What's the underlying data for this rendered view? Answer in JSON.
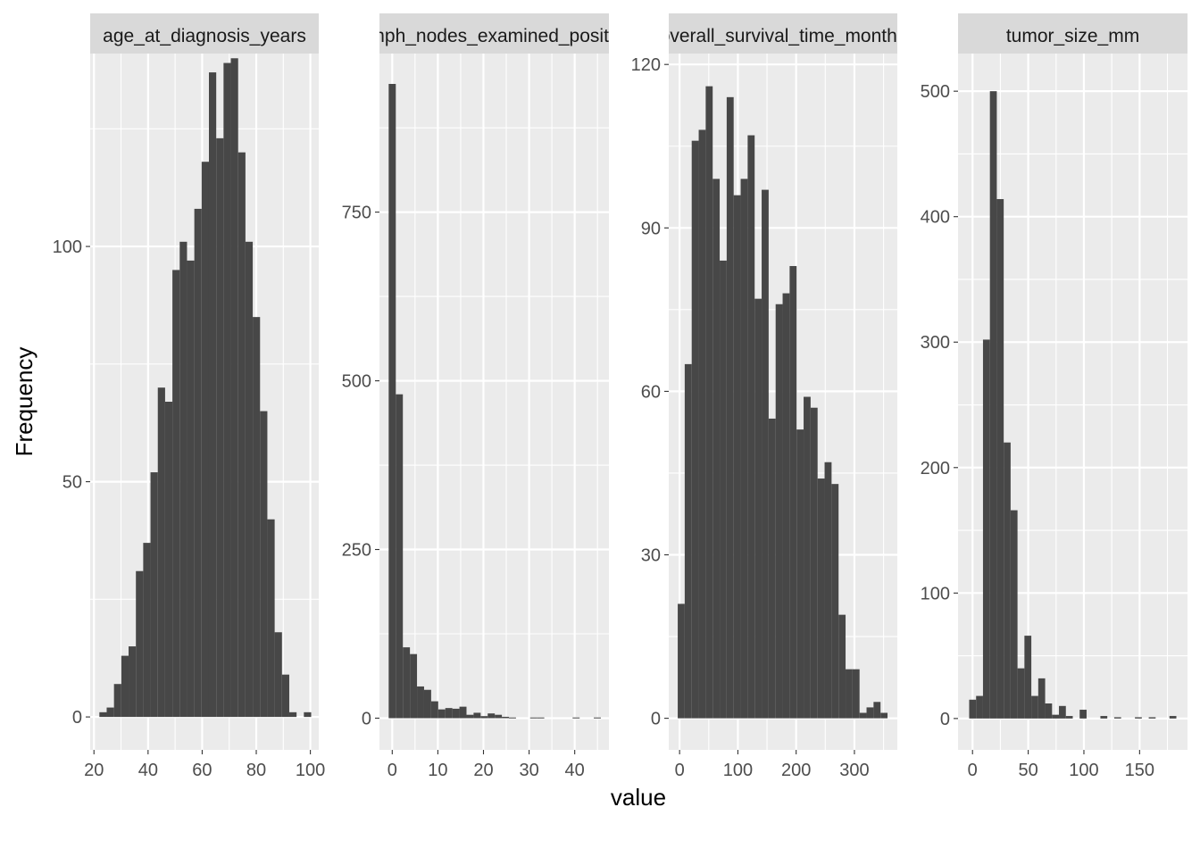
{
  "chart_data": {
    "type": "histogram-facets",
    "xlabel": "value",
    "ylabel": "Frequency",
    "panels": [
      {
        "strip": "age_at_diagnosis_years",
        "xlim": [
          18.6,
          103.1
        ],
        "ylim": [
          -7,
          141
        ],
        "xticks": [
          20,
          40,
          60,
          80,
          100
        ],
        "yticks": [
          0,
          50,
          100
        ],
        "bins": [
          {
            "x0": 22.0,
            "x1": 24.7,
            "count": 1
          },
          {
            "x0": 24.7,
            "x1": 27.4,
            "count": 2
          },
          {
            "x0": 27.4,
            "x1": 30.1,
            "count": 7
          },
          {
            "x0": 30.1,
            "x1": 32.8,
            "count": 13
          },
          {
            "x0": 32.8,
            "x1": 35.5,
            "count": 15
          },
          {
            "x0": 35.5,
            "x1": 38.2,
            "count": 31
          },
          {
            "x0": 38.2,
            "x1": 40.9,
            "count": 37
          },
          {
            "x0": 40.9,
            "x1": 43.6,
            "count": 52
          },
          {
            "x0": 43.6,
            "x1": 46.3,
            "count": 70
          },
          {
            "x0": 46.3,
            "x1": 49.0,
            "count": 67
          },
          {
            "x0": 49.0,
            "x1": 51.7,
            "count": 95
          },
          {
            "x0": 51.7,
            "x1": 54.4,
            "count": 101
          },
          {
            "x0": 54.4,
            "x1": 57.1,
            "count": 97
          },
          {
            "x0": 57.1,
            "x1": 59.8,
            "count": 108
          },
          {
            "x0": 59.8,
            "x1": 62.5,
            "count": 118
          },
          {
            "x0": 62.5,
            "x1": 65.2,
            "count": 137
          },
          {
            "x0": 65.2,
            "x1": 67.9,
            "count": 123
          },
          {
            "x0": 67.9,
            "x1": 70.6,
            "count": 139
          },
          {
            "x0": 70.6,
            "x1": 73.3,
            "count": 140
          },
          {
            "x0": 73.3,
            "x1": 76.0,
            "count": 120
          },
          {
            "x0": 76.0,
            "x1": 78.7,
            "count": 101
          },
          {
            "x0": 78.7,
            "x1": 81.4,
            "count": 85
          },
          {
            "x0": 81.4,
            "x1": 84.1,
            "count": 65
          },
          {
            "x0": 84.1,
            "x1": 86.8,
            "count": 42
          },
          {
            "x0": 86.8,
            "x1": 89.5,
            "count": 18
          },
          {
            "x0": 89.5,
            "x1": 92.2,
            "count": 9
          },
          {
            "x0": 92.2,
            "x1": 94.9,
            "count": 1
          },
          {
            "x0": 94.9,
            "x1": 97.6,
            "count": 0
          },
          {
            "x0": 97.6,
            "x1": 100.3,
            "count": 1
          }
        ]
      },
      {
        "strip": "lymph_nodes_examined_positive",
        "xlim": [
          -2.8,
          47.5
        ],
        "ylim": [
          -47,
          985
        ],
        "xticks": [
          0,
          10,
          20,
          30,
          40
        ],
        "yticks": [
          0,
          250,
          500,
          750
        ],
        "bins": [
          {
            "x0": -0.78,
            "x1": 0.78,
            "count": 940
          },
          {
            "x0": 0.78,
            "x1": 2.33,
            "count": 480
          },
          {
            "x0": 2.33,
            "x1": 3.88,
            "count": 105
          },
          {
            "x0": 3.88,
            "x1": 5.43,
            "count": 95
          },
          {
            "x0": 5.43,
            "x1": 6.98,
            "count": 47
          },
          {
            "x0": 6.98,
            "x1": 8.53,
            "count": 42
          },
          {
            "x0": 8.53,
            "x1": 10.08,
            "count": 25
          },
          {
            "x0": 10.08,
            "x1": 11.63,
            "count": 13
          },
          {
            "x0": 11.63,
            "x1": 13.18,
            "count": 15
          },
          {
            "x0": 13.18,
            "x1": 14.73,
            "count": 14
          },
          {
            "x0": 14.73,
            "x1": 16.28,
            "count": 17
          },
          {
            "x0": 16.28,
            "x1": 17.83,
            "count": 5
          },
          {
            "x0": 17.83,
            "x1": 19.38,
            "count": 8
          },
          {
            "x0": 19.38,
            "x1": 20.93,
            "count": 3
          },
          {
            "x0": 20.93,
            "x1": 22.48,
            "count": 7
          },
          {
            "x0": 22.48,
            "x1": 24.03,
            "count": 5
          },
          {
            "x0": 24.03,
            "x1": 25.58,
            "count": 2
          },
          {
            "x0": 25.58,
            "x1": 27.13,
            "count": 1
          },
          {
            "x0": 27.13,
            "x1": 28.68,
            "count": 0
          },
          {
            "x0": 28.68,
            "x1": 30.23,
            "count": 0
          },
          {
            "x0": 30.23,
            "x1": 31.78,
            "count": 1
          },
          {
            "x0": 31.78,
            "x1": 33.33,
            "count": 1
          },
          {
            "x0": 33.33,
            "x1": 34.88,
            "count": 0
          },
          {
            "x0": 34.88,
            "x1": 36.43,
            "count": 0
          },
          {
            "x0": 36.43,
            "x1": 37.98,
            "count": 0
          },
          {
            "x0": 37.98,
            "x1": 39.53,
            "count": 0
          },
          {
            "x0": 39.53,
            "x1": 41.08,
            "count": 1
          },
          {
            "x0": 41.08,
            "x1": 42.63,
            "count": 0
          },
          {
            "x0": 42.63,
            "x1": 44.18,
            "count": 0
          },
          {
            "x0": 44.18,
            "x1": 45.73,
            "count": 1
          }
        ]
      },
      {
        "strip": "overall_survival_time_months",
        "xlim": [
          -18.6,
          373.6
        ],
        "ylim": [
          -5.8,
          122
        ],
        "xticks": [
          0,
          100,
          200,
          300
        ],
        "yticks": [
          0,
          30,
          60,
          90,
          120
        ],
        "bins": [
          {
            "x0": -3.2,
            "x1": 8.8,
            "count": 21
          },
          {
            "x0": 8.8,
            "x1": 20.8,
            "count": 65
          },
          {
            "x0": 20.8,
            "x1": 32.8,
            "count": 106
          },
          {
            "x0": 32.8,
            "x1": 44.8,
            "count": 108
          },
          {
            "x0": 44.8,
            "x1": 56.8,
            "count": 116
          },
          {
            "x0": 56.8,
            "x1": 68.8,
            "count": 99
          },
          {
            "x0": 68.8,
            "x1": 80.8,
            "count": 84
          },
          {
            "x0": 80.8,
            "x1": 92.8,
            "count": 114
          },
          {
            "x0": 92.8,
            "x1": 104.8,
            "count": 96
          },
          {
            "x0": 104.8,
            "x1": 116.8,
            "count": 99
          },
          {
            "x0": 116.8,
            "x1": 128.8,
            "count": 107
          },
          {
            "x0": 128.8,
            "x1": 140.8,
            "count": 77
          },
          {
            "x0": 140.8,
            "x1": 152.8,
            "count": 97
          },
          {
            "x0": 152.8,
            "x1": 164.8,
            "count": 55
          },
          {
            "x0": 164.8,
            "x1": 176.8,
            "count": 76
          },
          {
            "x0": 176.8,
            "x1": 188.8,
            "count": 78
          },
          {
            "x0": 188.8,
            "x1": 200.8,
            "count": 83
          },
          {
            "x0": 200.8,
            "x1": 212.8,
            "count": 53
          },
          {
            "x0": 212.8,
            "x1": 224.8,
            "count": 59
          },
          {
            "x0": 224.8,
            "x1": 236.8,
            "count": 57
          },
          {
            "x0": 236.8,
            "x1": 248.8,
            "count": 44
          },
          {
            "x0": 248.8,
            "x1": 260.8,
            "count": 47
          },
          {
            "x0": 260.8,
            "x1": 272.8,
            "count": 43
          },
          {
            "x0": 272.8,
            "x1": 284.8,
            "count": 19
          },
          {
            "x0": 284.8,
            "x1": 296.8,
            "count": 9
          },
          {
            "x0": 296.8,
            "x1": 308.8,
            "count": 9
          },
          {
            "x0": 308.8,
            "x1": 320.8,
            "count": 1
          },
          {
            "x0": 320.8,
            "x1": 332.8,
            "count": 2
          },
          {
            "x0": 332.8,
            "x1": 344.8,
            "count": 3
          },
          {
            "x0": 344.8,
            "x1": 356.8,
            "count": 1
          }
        ]
      },
      {
        "strip": "tumor_size_mm",
        "xlim": [
          -13.0,
          193.0
        ],
        "ylim": [
          -25,
          530
        ],
        "xticks": [
          0,
          50,
          100,
          150
        ],
        "yticks": [
          0,
          100,
          200,
          300,
          400,
          500
        ],
        "bins": [
          {
            "x0": -3.0,
            "x1": 3.2,
            "count": 15
          },
          {
            "x0": 3.2,
            "x1": 9.4,
            "count": 18
          },
          {
            "x0": 9.4,
            "x1": 15.6,
            "count": 302
          },
          {
            "x0": 15.6,
            "x1": 21.8,
            "count": 500
          },
          {
            "x0": 21.8,
            "x1": 28.0,
            "count": 414
          },
          {
            "x0": 28.0,
            "x1": 34.2,
            "count": 220
          },
          {
            "x0": 34.2,
            "x1": 40.4,
            "count": 166
          },
          {
            "x0": 40.4,
            "x1": 46.6,
            "count": 40
          },
          {
            "x0": 46.6,
            "x1": 52.8,
            "count": 66
          },
          {
            "x0": 52.8,
            "x1": 59.0,
            "count": 18
          },
          {
            "x0": 59.0,
            "x1": 65.2,
            "count": 32
          },
          {
            "x0": 65.2,
            "x1": 71.4,
            "count": 12
          },
          {
            "x0": 71.4,
            "x1": 77.6,
            "count": 3
          },
          {
            "x0": 77.6,
            "x1": 83.8,
            "count": 10
          },
          {
            "x0": 83.8,
            "x1": 90.0,
            "count": 2
          },
          {
            "x0": 90.0,
            "x1": 96.2,
            "count": 0
          },
          {
            "x0": 96.2,
            "x1": 102.4,
            "count": 7
          },
          {
            "x0": 102.4,
            "x1": 108.6,
            "count": 0
          },
          {
            "x0": 108.6,
            "x1": 114.8,
            "count": 0
          },
          {
            "x0": 114.8,
            "x1": 121.0,
            "count": 2
          },
          {
            "x0": 121.0,
            "x1": 127.2,
            "count": 0
          },
          {
            "x0": 127.2,
            "x1": 133.4,
            "count": 1
          },
          {
            "x0": 133.4,
            "x1": 139.6,
            "count": 0
          },
          {
            "x0": 139.6,
            "x1": 145.8,
            "count": 0
          },
          {
            "x0": 145.8,
            "x1": 152.0,
            "count": 1
          },
          {
            "x0": 152.0,
            "x1": 158.2,
            "count": 0
          },
          {
            "x0": 158.2,
            "x1": 164.4,
            "count": 1
          },
          {
            "x0": 164.4,
            "x1": 170.6,
            "count": 0
          },
          {
            "x0": 170.6,
            "x1": 176.8,
            "count": 0
          },
          {
            "x0": 176.8,
            "x1": 183.0,
            "count": 2
          }
        ]
      }
    ],
    "colors": {
      "panel_background": "#ebebeb",
      "strip_background": "#d9d9d9",
      "grid": "#ffffff",
      "bar": "#474747",
      "tick_text": "#4d4d4d"
    }
  }
}
